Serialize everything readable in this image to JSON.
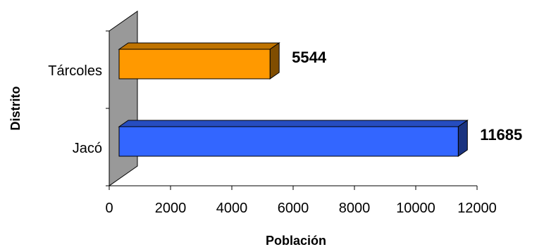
{
  "chart_data": {
    "type": "bar",
    "orientation": "horizontal",
    "style": "3d",
    "categories": [
      "Tárcoles",
      "Jacó"
    ],
    "values": [
      5544,
      11685
    ],
    "colors": [
      "#FF9900",
      "#3366FF"
    ],
    "xlabel": "Población",
    "ylabel": "Distrito",
    "xlim": [
      0,
      12000
    ],
    "xticks": [
      0,
      2000,
      4000,
      6000,
      8000,
      10000,
      12000
    ],
    "grid": false,
    "legend": "none"
  }
}
